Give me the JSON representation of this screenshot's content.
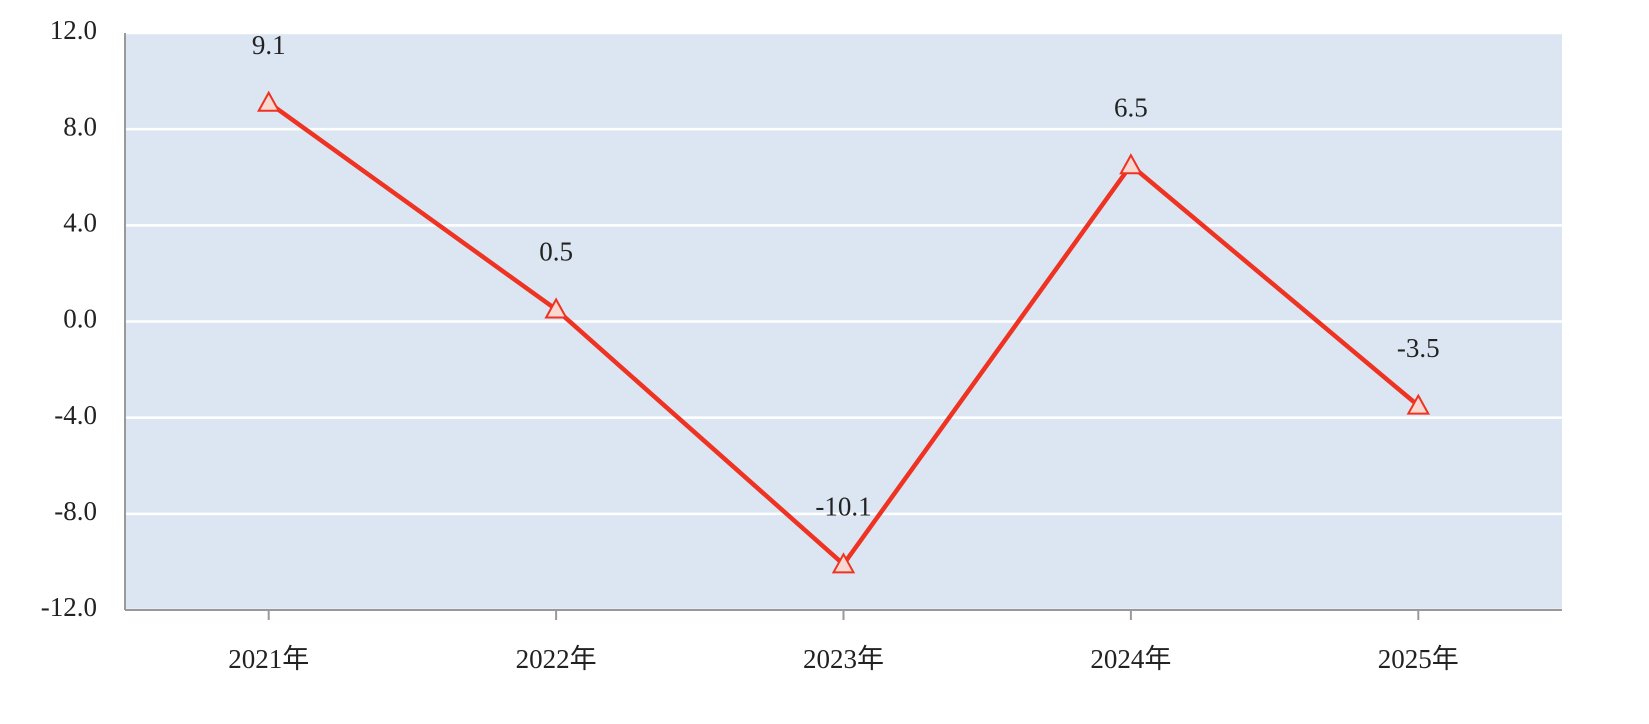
{
  "chart_data": {
    "type": "line",
    "categories": [
      "2021年",
      "2022年",
      "2023年",
      "2024年",
      "2025年"
    ],
    "values": [
      9.1,
      0.5,
      -10.1,
      6.5,
      -3.5
    ],
    "color": "#ee3322",
    "marker_fill": "#f8d8d0",
    "background": "#dce6f2",
    "ylim": [
      -12,
      12
    ],
    "yticks": [
      {
        "value": -12,
        "label": "-12.0"
      },
      {
        "value": -8,
        "label": "-8.0"
      },
      {
        "value": -4,
        "label": "-4.0"
      },
      {
        "value": 0,
        "label": "0.0"
      },
      {
        "value": 4,
        "label": "4.0"
      },
      {
        "value": 8,
        "label": "8.0"
      },
      {
        "value": 12,
        "label": "12.0"
      }
    ],
    "grid": true
  }
}
